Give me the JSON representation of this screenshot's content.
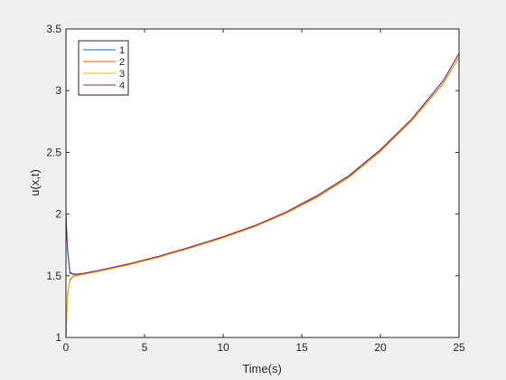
{
  "chart_data": {
    "type": "line",
    "title": "",
    "xlabel": "Time(s)",
    "ylabel": "u(x,t)",
    "xlim": [
      0,
      25
    ],
    "ylim": [
      1,
      3.5
    ],
    "xticks": [
      0,
      5,
      10,
      15,
      20,
      25
    ],
    "xtick_labels": [
      "0",
      "5",
      "10",
      "15",
      "20",
      "25"
    ],
    "yticks": [
      1,
      1.5,
      2,
      2.5,
      3,
      3.5
    ],
    "ytick_labels": [
      "1",
      "1.5",
      "2",
      "2.5",
      "3",
      "3.5"
    ],
    "grid": false,
    "legend_position": "top-left",
    "series": [
      {
        "name": "1",
        "color": "#0072BD",
        "x": [
          0,
          0.1,
          0.25,
          0.5,
          1,
          2,
          4,
          6,
          8,
          10,
          12,
          14,
          16,
          18,
          20,
          22,
          24,
          25
        ],
        "y": [
          2.0,
          1.7,
          1.52,
          1.51,
          1.515,
          1.54,
          1.595,
          1.66,
          1.735,
          1.815,
          1.905,
          2.015,
          2.15,
          2.31,
          2.52,
          2.77,
          3.08,
          3.3
        ]
      },
      {
        "name": "2",
        "color": "#D95319",
        "x": [
          0,
          0.1,
          0.25,
          0.5,
          1,
          2,
          4,
          6,
          8,
          10,
          12,
          14,
          16,
          18,
          20,
          22,
          24,
          25
        ],
        "y": [
          1.0,
          1.35,
          1.47,
          1.5,
          1.51,
          1.535,
          1.59,
          1.655,
          1.73,
          1.81,
          1.9,
          2.01,
          2.14,
          2.3,
          2.51,
          2.76,
          3.06,
          3.27
        ]
      },
      {
        "name": "3",
        "color": "#EDB120",
        "x": [
          0,
          0.1,
          0.25,
          0.5,
          1,
          2,
          4,
          6,
          8,
          10,
          12,
          14,
          16,
          18,
          20,
          22,
          24,
          25
        ],
        "y": [
          1.0,
          1.33,
          1.46,
          1.495,
          1.507,
          1.532,
          1.587,
          1.652,
          1.727,
          1.806,
          1.896,
          2.005,
          2.135,
          2.295,
          2.505,
          2.755,
          3.055,
          3.265
        ]
      },
      {
        "name": "4",
        "color": "#7E2F8E",
        "x": [
          0,
          0.1,
          0.25,
          0.5,
          1,
          2,
          4,
          6,
          8,
          10,
          12,
          14,
          16,
          18,
          20,
          22,
          24,
          25
        ],
        "y": [
          2.0,
          1.72,
          1.53,
          1.512,
          1.517,
          1.542,
          1.597,
          1.662,
          1.737,
          1.817,
          1.907,
          2.017,
          2.152,
          2.312,
          2.522,
          2.772,
          3.082,
          3.302
        ]
      }
    ]
  }
}
